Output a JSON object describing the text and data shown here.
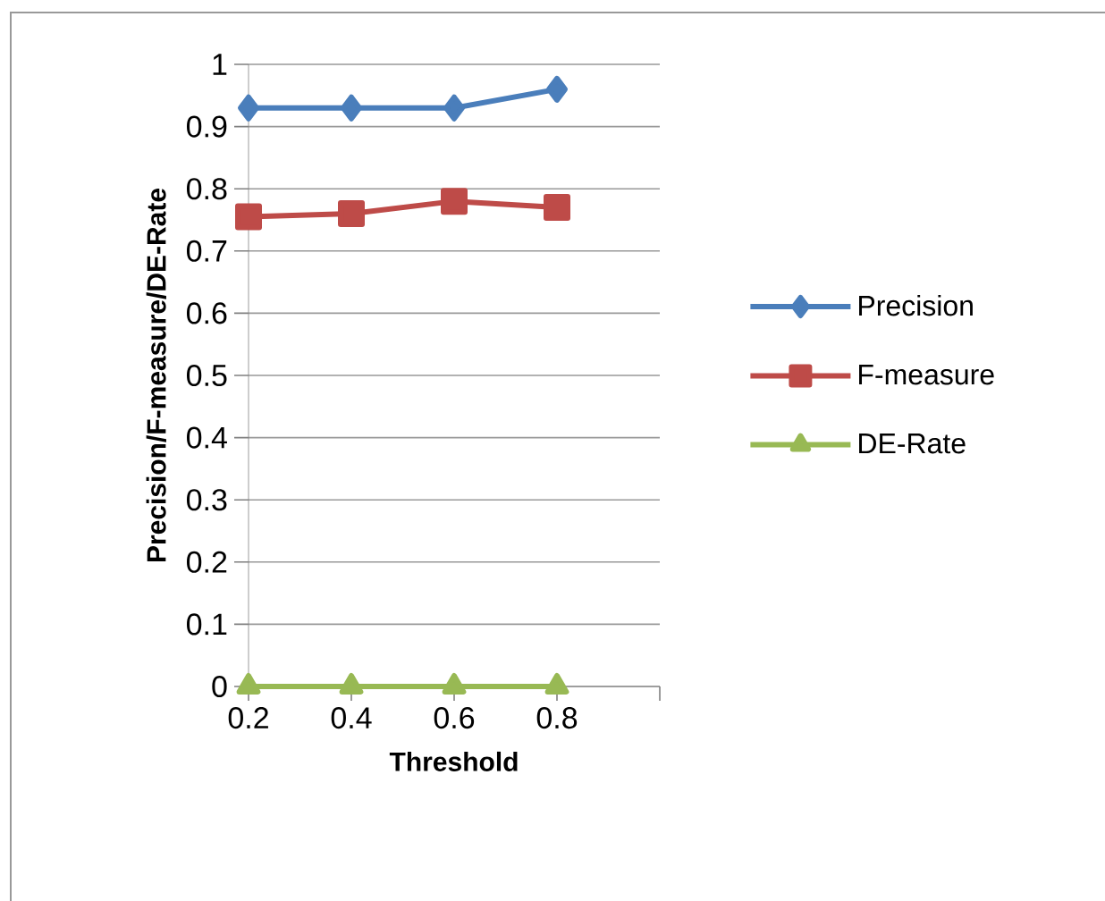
{
  "chart_data": {
    "type": "line",
    "xlabel": "Threshold",
    "ylabel": "Precision/F-measure/DE-Rate",
    "categories": [
      "0.2",
      "0.4",
      "0.6",
      "0.8",
      null
    ],
    "series": [
      {
        "name": "Precision",
        "color": "#4a7ebb",
        "marker": "diamond",
        "values": [
          0.93,
          0.93,
          0.93,
          0.96,
          null
        ]
      },
      {
        "name": "F-measure",
        "color": "#be4b48",
        "marker": "square",
        "values": [
          0.755,
          0.76,
          0.78,
          0.77,
          null
        ]
      },
      {
        "name": "DE-Rate",
        "color": "#98b954",
        "marker": "triangle",
        "values": [
          0,
          0,
          0,
          0,
          null
        ]
      }
    ],
    "ylim": [
      0,
      1
    ],
    "yticks": [
      0,
      0.1,
      0.2,
      0.3,
      0.4,
      0.5,
      0.6,
      0.7,
      0.8,
      0.9,
      1
    ],
    "grid": "y",
    "legend": "right",
    "line_style": "solid"
  }
}
